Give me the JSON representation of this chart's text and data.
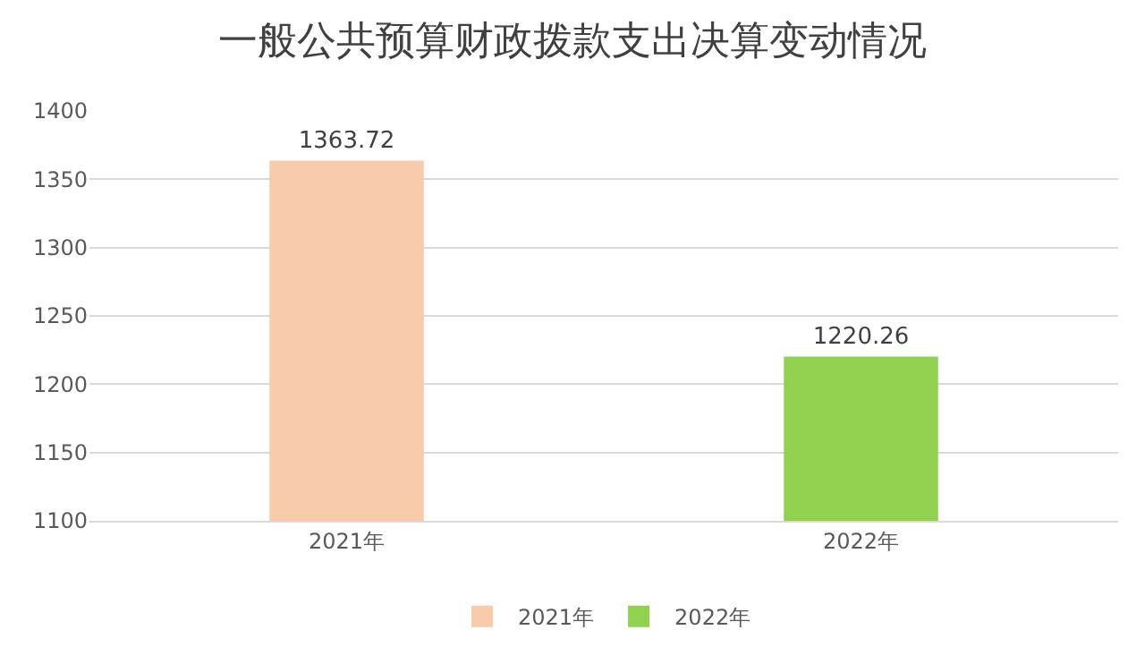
{
  "chart_data": {
    "type": "bar",
    "title": "一般公共预算财政拨款支出决算变动情况",
    "categories": [
      "2021年",
      "2022年"
    ],
    "series": [
      {
        "name": "2021年",
        "color": "#f8cbab",
        "values": [
          1363.72,
          null
        ]
      },
      {
        "name": "2022年",
        "color": "#92d050",
        "values": [
          null,
          1220.26
        ]
      }
    ],
    "ylim": [
      1100,
      1400
    ],
    "yticks": [
      1100,
      1150,
      1200,
      1250,
      1300,
      1350,
      1400
    ],
    "grid": "y",
    "legend": "bottom",
    "data_labels": true
  }
}
